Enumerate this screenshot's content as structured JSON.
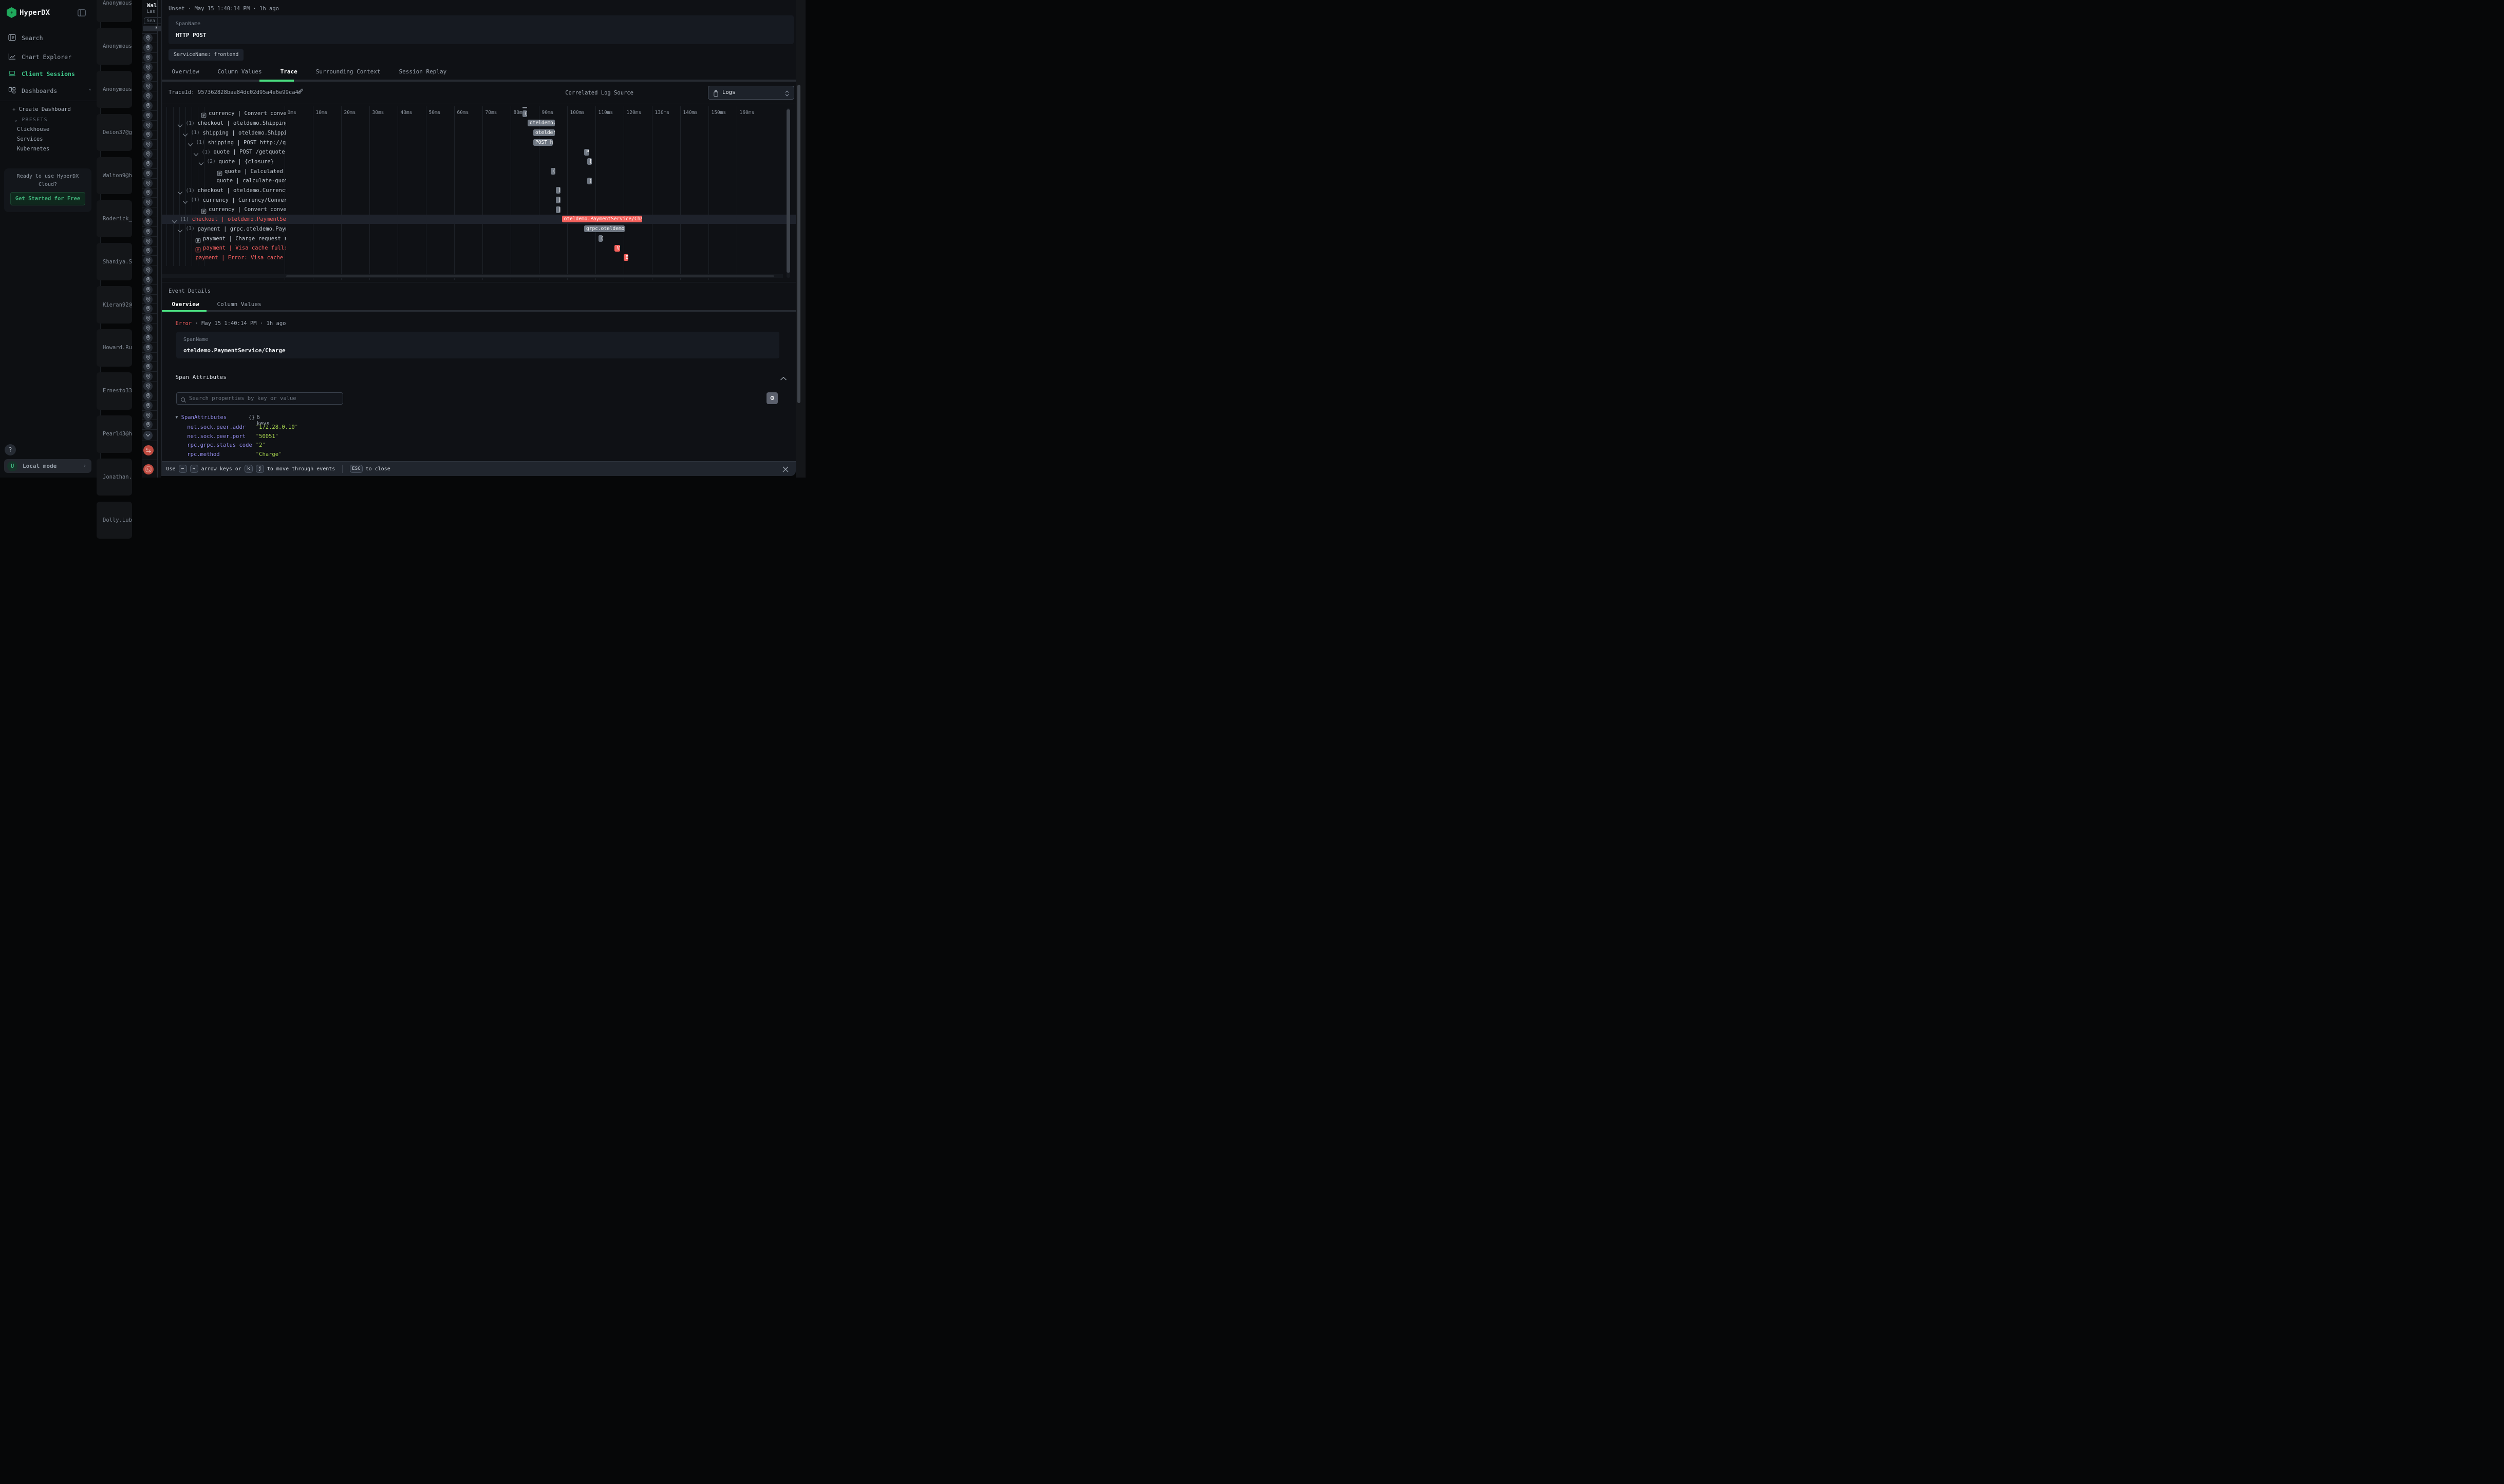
{
  "sidebar": {
    "logo": "HyperDX",
    "nav": [
      {
        "label": "Search",
        "icon": "search-icon",
        "active": false
      },
      {
        "label": "Chart Explorer",
        "icon": "chart-icon",
        "active": false
      },
      {
        "label": "Client Sessions",
        "icon": "laptop-icon",
        "active": true
      },
      {
        "label": "Dashboards",
        "icon": "dashboards-icon",
        "active": false,
        "chevron": "up"
      }
    ],
    "create_dashboard": "+ Create Dashboard",
    "presets_label": "PRESETS",
    "presets": [
      "Clickhouse",
      "Services",
      "Kubernetes"
    ],
    "promo": {
      "line1": "Ready to use HyperDX",
      "line2": "Cloud?",
      "cta": "Get Started for Free"
    },
    "help": "?",
    "user": {
      "initial": "U",
      "label": "Local mode"
    }
  },
  "session_list": [
    "Anonymous",
    "Anonymous",
    "Anonymous",
    "Deion37@gm",
    "Walton9@ho",
    "Roderick_S",
    "Shaniya.Sc",
    "Kieran92@h",
    "Howard.Run",
    "Ernesto33@",
    "Pearl43@ho",
    "Jonathan.B",
    "Dolly.Lubo"
  ],
  "session_panel": {
    "title_fragment": "Wal",
    "subtitle_fragment": "Las",
    "search_fragment": "Sea",
    "button_fragment": "H",
    "pin_rows": 41,
    "footer_icons": [
      "chevron-down",
      "swap-arrows",
      "terminal"
    ]
  },
  "modal": {
    "status_line": {
      "status": "Unset",
      "sep": "·",
      "timestamp": "May 15 1:40:14 PM",
      "ago": "1h ago"
    },
    "span_card": {
      "label": "SpanName",
      "value": "HTTP POST"
    },
    "service_chip": "ServiceName: frontend",
    "tabs": [
      "Overview",
      "Column Values",
      "Trace",
      "Surrounding Context",
      "Session Replay"
    ],
    "active_tab": "Trace",
    "trace_id": {
      "label": "TraceId:",
      "value": "957362828baa84dc02d95a4e6e99ca4f"
    },
    "correlated_log_source": {
      "label": "Correlated Log Source",
      "value": "Logs"
    },
    "chart_data": {
      "type": "trace-waterfall-gantt",
      "unit": "ms",
      "ticks_ms": [
        0,
        10,
        20,
        30,
        40,
        50,
        60,
        70,
        80,
        90,
        100,
        110,
        120,
        130,
        140,
        150,
        160
      ],
      "rows": [
        {
          "text": "currency | Convert convers…",
          "indent": 76,
          "icon": "doc",
          "count": null,
          "error": false,
          "highlight": false,
          "bar": {
            "start_ms": 84.2,
            "duration_ms": 1.8,
            "color": "gray",
            "label": "("
          }
        },
        {
          "text": "checkout | oteldemo.ShippingSe…",
          "indent": 30,
          "icon": "chevron",
          "count": "(1)",
          "error": false,
          "highlight": false,
          "bar": {
            "start_ms": 86.1,
            "duration_ms": 9.7,
            "color": "gray",
            "label": "oteldemo."
          }
        },
        {
          "text": "shipping | oteldemo.Shipping…",
          "indent": 40,
          "icon": "chevron",
          "count": "(1)",
          "error": false,
          "highlight": false,
          "bar": {
            "start_ms": 88.1,
            "duration_ms": 7.6,
            "color": "gray",
            "label": "otelder"
          }
        },
        {
          "text": "shipping | POST http://quo…",
          "indent": 50,
          "icon": "chevron",
          "count": "(1)",
          "error": false,
          "highlight": false,
          "bar": {
            "start_ms": 88.1,
            "duration_ms": 6.9,
            "color": "gray",
            "label": "POST h"
          }
        },
        {
          "text": "quote | POST /getquote",
          "indent": 61,
          "icon": "chevron",
          "count": "(1)",
          "error": false,
          "highlight": false,
          "bar": {
            "start_ms": 106.1,
            "duration_ms": 1.8,
            "color": "gray",
            "label": "P"
          }
        },
        {
          "text": "quote | {closure}",
          "indent": 71,
          "icon": "chevron",
          "count": "(2)",
          "error": false,
          "highlight": false,
          "bar": {
            "start_ms": 107.1,
            "duration_ms": 1.8,
            "color": "gray",
            "label": "{"
          }
        },
        {
          "text": "quote | Calculated q…",
          "indent": 107,
          "icon": "doc",
          "count": null,
          "error": false,
          "highlight": false,
          "bar": {
            "start_ms": 94.2,
            "duration_ms": 1.7,
            "color": "gray",
            "label": "("
          }
        },
        {
          "text": "quote | calculate-quote",
          "indent": 107,
          "icon": "none",
          "count": null,
          "error": false,
          "highlight": false,
          "bar": {
            "start_ms": 107.1,
            "duration_ms": 1.7,
            "color": "gray",
            "label": "("
          }
        },
        {
          "text": "checkout | oteldemo.CurrencySe…",
          "indent": 30,
          "icon": "chevron",
          "count": "(1)",
          "error": false,
          "highlight": false,
          "bar": {
            "start_ms": 96.1,
            "duration_ms": 1.7,
            "color": "gray",
            "label": "("
          }
        },
        {
          "text": "currency | Currency/Convert",
          "indent": 40,
          "icon": "chevron",
          "count": "(1)",
          "error": false,
          "highlight": false,
          "bar": {
            "start_ms": 96.1,
            "duration_ms": 1.7,
            "color": "gray",
            "label": "("
          }
        },
        {
          "text": "currency | Convert convers…",
          "indent": 76,
          "icon": "doc",
          "count": null,
          "error": false,
          "highlight": false,
          "bar": {
            "start_ms": 96.1,
            "duration_ms": 1.7,
            "color": "gray",
            "label": "("
          }
        },
        {
          "text": "checkout | oteldemo.PaymentServi…",
          "indent": 19,
          "icon": "chevron",
          "count": "(1)",
          "error": true,
          "highlight": true,
          "bar": {
            "start_ms": 98.2,
            "duration_ms": 28.4,
            "color": "red",
            "label": "oteldemo.PaymentService/Char"
          }
        },
        {
          "text": "payment | grpc.oteldemo.Paymen…",
          "indent": 30,
          "icon": "chevron",
          "count": "(3)",
          "error": false,
          "highlight": false,
          "bar": {
            "start_ms": 106.1,
            "duration_ms": 14.4,
            "color": "gray",
            "label": "grpc.oteldemo."
          }
        },
        {
          "text": "payment | Charge request rec…",
          "indent": 65,
          "icon": "doc",
          "count": null,
          "error": false,
          "highlight": false,
          "bar": {
            "start_ms": 111.2,
            "duration_ms": 1.5,
            "color": "gray",
            "label": "("
          }
        },
        {
          "text": "payment | Visa cache full: c…",
          "indent": 65,
          "icon": "doc",
          "count": null,
          "error": true,
          "highlight": false,
          "bar": {
            "start_ms": 116.9,
            "duration_ms": 2.0,
            "color": "red",
            "label": "V"
          }
        },
        {
          "text": "payment | Error: Visa cache ful…",
          "indent": 66,
          "icon": "none",
          "count": null,
          "error": true,
          "highlight": false,
          "bar": {
            "start_ms": 120.0,
            "duration_ms": 1.7,
            "color": "red",
            "label": "E"
          }
        }
      ]
    },
    "event_details": {
      "title": "Event Details",
      "tabs": [
        "Overview",
        "Column Values"
      ],
      "active_tab": "Overview",
      "status": "Error",
      "sep": "·",
      "timestamp": "May 15 1:40:14 PM",
      "ago": "1h ago",
      "span_card": {
        "label": "SpanName",
        "value": "oteldemo.PaymentService/Charge"
      },
      "span_attributes": {
        "title": "Span Attributes",
        "search_placeholder": "Search properties by key or value",
        "root_key": "SpanAttributes",
        "root_badge": "{}",
        "root_meta": "6 keys",
        "attributes": [
          {
            "key": "net.sock.peer.addr",
            "value": "172.28.0.10"
          },
          {
            "key": "net.sock.peer.port",
            "value": "50051"
          },
          {
            "key": "rpc.grpc.status_code",
            "value": "2"
          },
          {
            "key": "rpc.method",
            "value": "Charge"
          }
        ]
      }
    },
    "footer": {
      "use": "Use",
      "arrow_keys": [
        "←",
        "→"
      ],
      "mid": "arrow keys or",
      "letter_keys": [
        "k",
        "j"
      ],
      "suffix": "to move through events",
      "esc": "ESC",
      "esc_suffix": "to close"
    }
  }
}
